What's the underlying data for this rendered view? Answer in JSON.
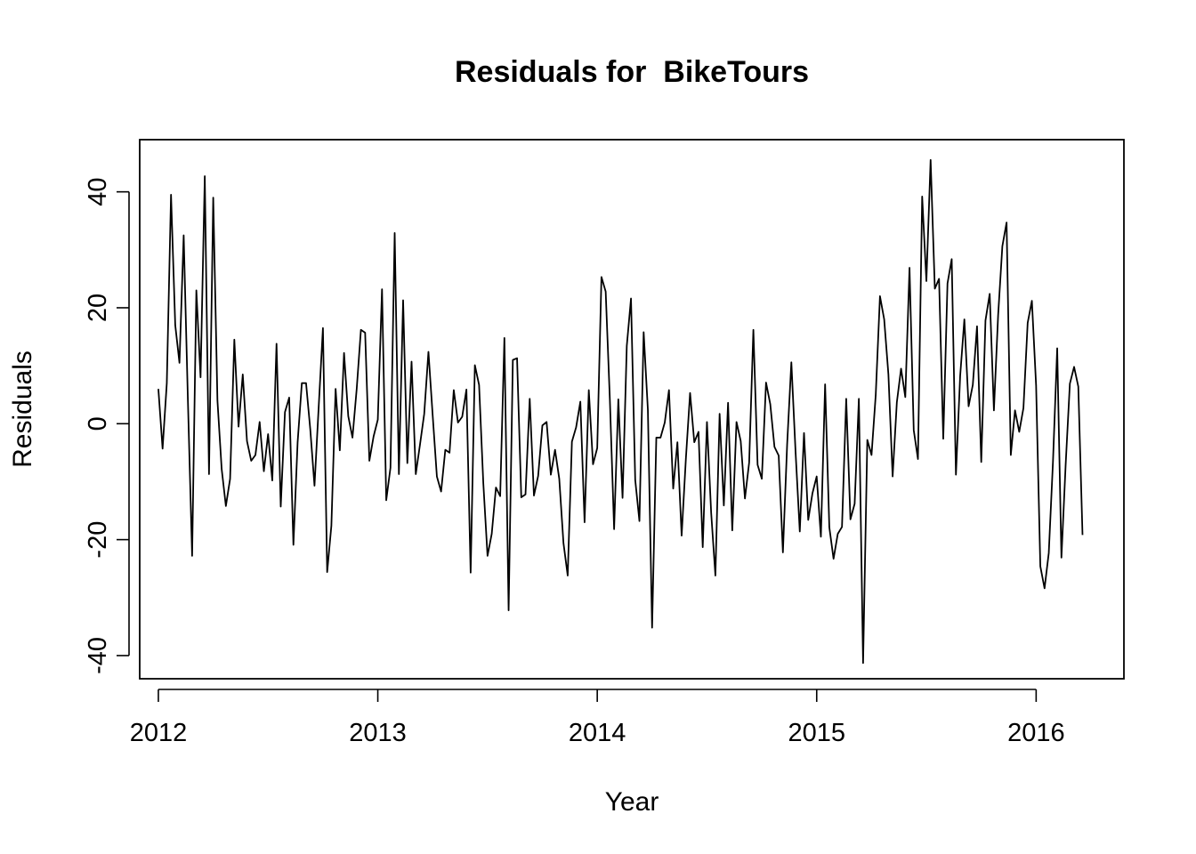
{
  "chart_data": {
    "type": "line",
    "title": "Residuals for  BikeTours",
    "xlabel": "Year",
    "ylabel": "Residuals",
    "xlim": [
      2011.915,
      2016.4
    ],
    "ylim": [
      -44,
      49
    ],
    "x_ticks": [
      2012,
      2013,
      2014,
      2015,
      2016
    ],
    "x_tick_labels": [
      "2012",
      "2013",
      "2014",
      "2015",
      "2016"
    ],
    "y_ticks": [
      -40,
      -20,
      0,
      20,
      40
    ],
    "y_tick_labels": [
      "-40",
      "-20",
      "0",
      "20",
      "40"
    ],
    "grid": false,
    "legend": "none",
    "x_start": 2012.0,
    "x_step": 0.01923,
    "series": [
      {
        "values": [
          6,
          -4.3,
          7,
          39.5,
          17,
          10.5,
          32.5,
          4,
          -22.8,
          23,
          8,
          42.7,
          -8.7,
          39,
          4,
          -7.8,
          -14.2,
          -9.5,
          14.5,
          -0.5,
          8.5,
          -3,
          -6.4,
          -5.4,
          0.3,
          -8.2,
          -1.8,
          -9.8,
          13.8,
          -14.3,
          2,
          4.5,
          -20.9,
          -3.2,
          7,
          7,
          -1,
          -10.7,
          3,
          16.5,
          -25.6,
          -17.6,
          6,
          -4.6,
          12.2,
          1.3,
          -2.4,
          6,
          16.2,
          15.7,
          -6.4,
          -2.2,
          0.7,
          23.2,
          -13.2,
          -7.6,
          32.9,
          -8.7,
          21.3,
          -6.8,
          10.7,
          -8.7,
          -3.6,
          1.7,
          12.4,
          1.5,
          -9.1,
          -11.7,
          -4.5,
          -5,
          5.8,
          0.2,
          1.2,
          5.9,
          -25.7,
          10.1,
          6.7,
          -10.2,
          -22.8,
          -19,
          -11,
          -12.5,
          14.8,
          -32.2,
          11,
          11.3,
          -12.7,
          -12.2,
          4.3,
          -12.4,
          -9,
          -0.3,
          0.3,
          -8.8,
          -4.5,
          -9.5,
          -20.6,
          -26.2,
          -3.1,
          -0.6,
          3.8,
          -17,
          5.8,
          -7,
          -4.2,
          25.3,
          22.8,
          4,
          -18.2,
          4.2,
          -12.8,
          13.4,
          21.6,
          -9.7,
          -16.8,
          15.8,
          2.4,
          -35.2,
          -2.4,
          -2.4,
          0.2,
          5.8,
          -11.2,
          -3.2,
          -19.3,
          -6.1,
          5.3,
          -3.2,
          -1.4,
          -21.3,
          0.3,
          -15.4,
          -26.2,
          1.7,
          -14.1,
          3.6,
          -18.4,
          0.3,
          -3,
          -12.9,
          -6.7,
          16.2,
          -7.1,
          -9.5,
          7.1,
          3.4,
          -4,
          -5.5,
          -22.2,
          -3.6,
          10.6,
          -4.9,
          -18.6,
          -1.6,
          -16.6,
          -12,
          -9.1,
          -19.5,
          6.8,
          -17.9,
          -23.3,
          -19,
          -17.8,
          4.3,
          -16.5,
          -13.8,
          4.3,
          -41.3,
          -2.8,
          -5.4,
          5,
          22,
          18,
          8.5,
          -9.1,
          3.7,
          9.5,
          4.6,
          26.9,
          -1.1,
          -6.1,
          39.2,
          24.6,
          45.5,
          23.3,
          25,
          -2.6,
          24.2,
          28.4,
          -8.8,
          8.2,
          18,
          3,
          6.7,
          16.8,
          -6.6,
          17.8,
          22.4,
          2.3,
          18.7,
          30.6,
          34.7,
          -5.4,
          2.3,
          -1.4,
          2.7,
          17.4,
          21.2,
          6.6,
          -24.6,
          -28.4,
          -22.3,
          -6.5,
          13,
          -23.1,
          -7.1,
          6.9,
          9.8,
          6.4,
          -19.2
        ]
      }
    ]
  }
}
